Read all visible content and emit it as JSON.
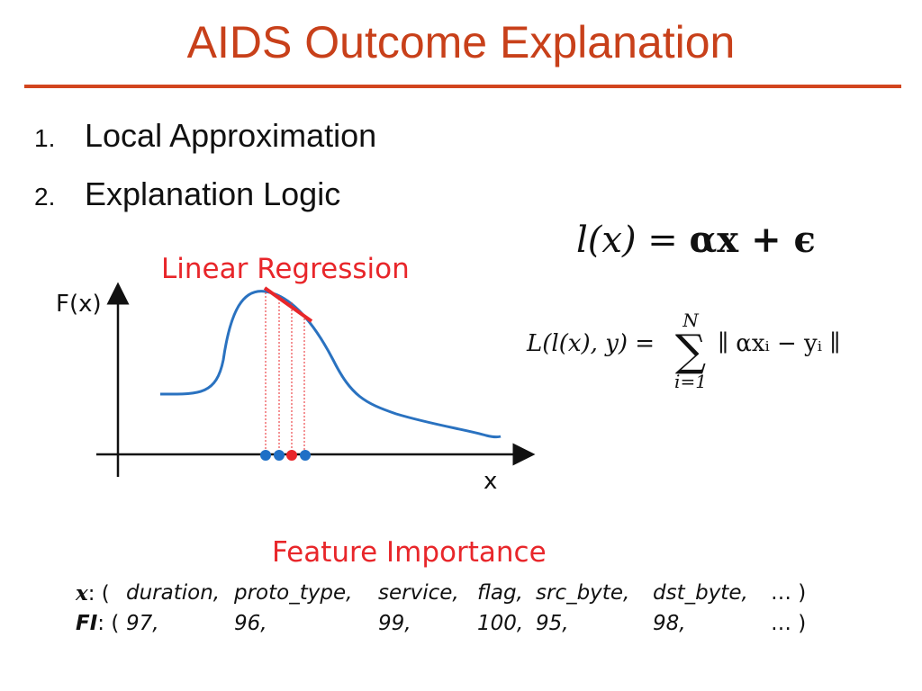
{
  "title": "AIDS Outcome Explanation",
  "list": [
    {
      "num": "1.",
      "text": "Local Approximation"
    },
    {
      "num": "2.",
      "text": "Explanation Logic"
    }
  ],
  "diagram": {
    "regression_label": "Linear Regression",
    "y_axis_label": "F(x)",
    "x_axis_label": "x",
    "colors": {
      "curve": "#2a72c0",
      "regression": "#e8262a",
      "sample_point": "#1f6fc6",
      "instance_point": "#e8262a",
      "title": "#c8401a"
    }
  },
  "equations": {
    "local_model": {
      "lhs": "l(x)",
      "eq": "=",
      "rhs": "αx + ϵ"
    },
    "loss": {
      "lhs": "L(l(x), y) =",
      "sum_top": "N",
      "sum_bottom": "i=1",
      "rhs": "∥ αxᵢ − yᵢ ∥"
    }
  },
  "feature_importance": {
    "label": "Feature Importance",
    "x_key": "x",
    "fi_key": "FI",
    "features": [
      "duration,",
      "proto_type,",
      "service,",
      "flag,",
      "src_byte,",
      "dst_byte,",
      "… )"
    ],
    "scores": [
      "97,",
      "96,",
      "99,",
      "100,",
      "95,",
      "98,",
      "… )"
    ]
  }
}
